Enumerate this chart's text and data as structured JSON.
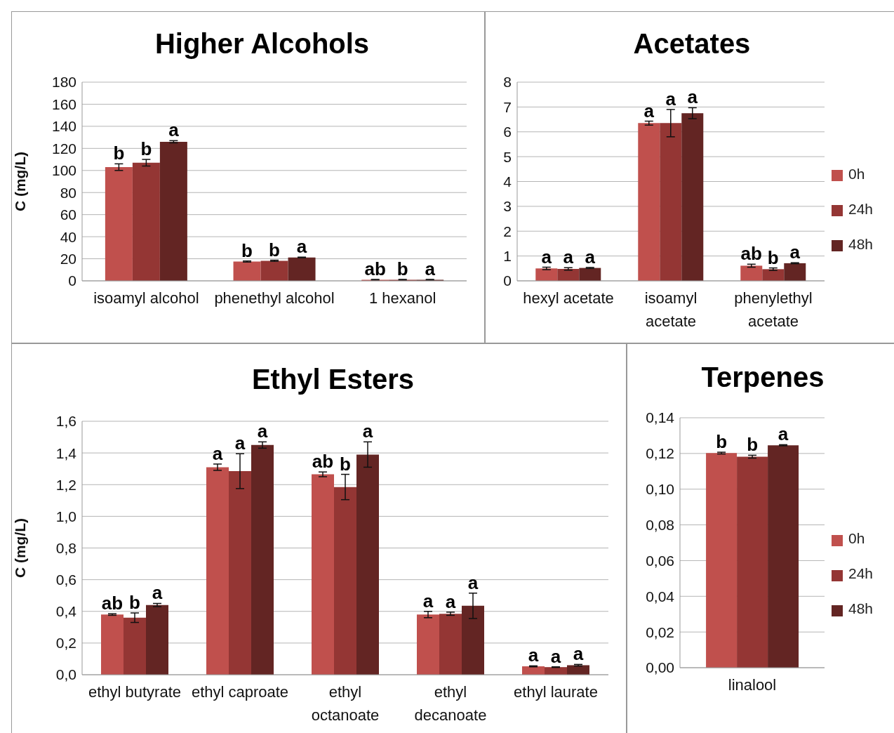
{
  "chart_data": [
    {
      "type": "bar",
      "title": "Higher Alcohols",
      "ylabel": "C (mg/L)",
      "categories": [
        "isoamyl alcohol",
        "phenethyl alcohol",
        "1 hexanol"
      ],
      "series": [
        {
          "color": "#c0504d",
          "values": [
            103,
            17.5,
            1.0
          ],
          "errors": [
            3,
            0.5,
            0.3
          ],
          "value_labels": [
            "b",
            "b",
            "ab"
          ]
        },
        {
          "color": "#943634",
          "values": [
            107,
            18.2,
            1.0
          ],
          "errors": [
            3,
            0.5,
            0.3
          ],
          "value_labels": [
            "b",
            "b",
            "b"
          ]
        },
        {
          "color": "#632523",
          "values": [
            126,
            21.2,
            1.0
          ],
          "errors": [
            1,
            0.3,
            0.3
          ],
          "value_labels": [
            "a",
            "a",
            "a"
          ]
        }
      ],
      "ylim": [
        0,
        180
      ],
      "yticks": [
        0,
        20,
        40,
        60,
        80,
        100,
        120,
        140,
        160,
        180
      ],
      "grid": "y",
      "legend": false
    },
    {
      "type": "bar",
      "title": "Acetates",
      "categories": [
        "hexyl acetate",
        "isoamyl acetate",
        "phenylethyl acetate"
      ],
      "series": [
        {
          "name": "0h",
          "color": "#c0504d",
          "values": [
            0.5,
            6.35,
            0.61
          ],
          "errors": [
            0.05,
            0.08,
            0.06
          ],
          "value_labels": [
            "a",
            "a",
            "ab"
          ]
        },
        {
          "name": "24h",
          "color": "#943634",
          "values": [
            0.48,
            6.35,
            0.47
          ],
          "errors": [
            0.05,
            0.55,
            0.05
          ],
          "value_labels": [
            "a",
            "a",
            "b"
          ]
        },
        {
          "name": "48h",
          "color": "#632523",
          "values": [
            0.52,
            6.75,
            0.71
          ],
          "errors": [
            0.02,
            0.22,
            0.02
          ],
          "value_labels": [
            "a",
            "a",
            "a"
          ]
        }
      ],
      "ylim": [
        0,
        8
      ],
      "yticks": [
        0,
        1,
        2,
        3,
        4,
        5,
        6,
        7,
        8
      ],
      "grid": "y",
      "legend": "right"
    },
    {
      "type": "bar",
      "title": "Ethyl Esters",
      "ylabel": "C (mg/L)",
      "categories": [
        "ethyl butyrate",
        "ethyl caproate",
        "ethyl octanoate",
        "ethyl decanoate",
        "ethyl laurate"
      ],
      "series": [
        {
          "color": "#c0504d",
          "values": [
            0.38,
            1.31,
            1.265,
            0.38,
            0.053
          ],
          "errors": [
            0.005,
            0.02,
            0.015,
            0.02,
            0.003
          ],
          "value_labels": [
            "ab",
            "a",
            "ab",
            "a",
            "a"
          ]
        },
        {
          "color": "#943634",
          "values": [
            0.36,
            1.285,
            1.185,
            0.385,
            0.048
          ],
          "errors": [
            0.03,
            0.11,
            0.08,
            0.01,
            0.002
          ],
          "value_labels": [
            "b",
            "a",
            "b",
            "a",
            "a"
          ]
        },
        {
          "color": "#632523",
          "values": [
            0.44,
            1.45,
            1.39,
            0.435,
            0.06
          ],
          "errors": [
            0.01,
            0.02,
            0.08,
            0.08,
            0.005
          ],
          "value_labels": [
            "a",
            "a",
            "a",
            "a",
            "a"
          ]
        }
      ],
      "ylim": [
        0,
        1.6
      ],
      "yticks": [
        {
          "value": 0,
          "label": "0,0"
        },
        {
          "value": 0.2,
          "label": "0,2"
        },
        {
          "value": 0.4,
          "label": "0,4"
        },
        {
          "value": 0.6,
          "label": "0,6"
        },
        {
          "value": 0.8,
          "label": "0,8"
        },
        {
          "value": 1.0,
          "label": "1,0"
        },
        {
          "value": 1.2,
          "label": "1,2"
        },
        {
          "value": 1.4,
          "label": "1,4"
        },
        {
          "value": 1.6,
          "label": "1,6"
        }
      ],
      "grid": "y",
      "legend": false
    },
    {
      "type": "bar",
      "title": "Terpenes",
      "categories": [
        "linalool"
      ],
      "series": [
        {
          "name": "0h",
          "color": "#c0504d",
          "values": [
            0.1202
          ],
          "errors": [
            0.0005
          ],
          "value_labels": [
            "b"
          ]
        },
        {
          "name": "24h",
          "color": "#943634",
          "values": [
            0.1182
          ],
          "errors": [
            0.0008
          ],
          "value_labels": [
            "b"
          ]
        },
        {
          "name": "48h",
          "color": "#632523",
          "values": [
            0.1246
          ],
          "errors": [
            0.0003
          ],
          "value_labels": [
            "a"
          ]
        }
      ],
      "ylim": [
        0,
        0.14
      ],
      "yticks": [
        {
          "value": 0,
          "label": "0,00"
        },
        {
          "value": 0.02,
          "label": "0,02"
        },
        {
          "value": 0.04,
          "label": "0,04"
        },
        {
          "value": 0.06,
          "label": "0,06"
        },
        {
          "value": 0.08,
          "label": "0,08"
        },
        {
          "value": 0.1,
          "label": "0,10"
        },
        {
          "value": 0.12,
          "label": "0,12"
        },
        {
          "value": 0.14,
          "label": "0,14"
        }
      ],
      "grid": "y",
      "legend": "right"
    }
  ]
}
